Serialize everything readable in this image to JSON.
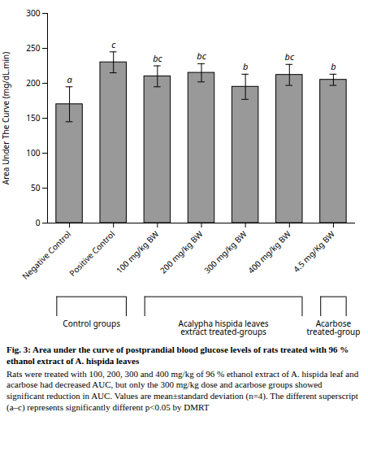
{
  "chart_data": {
    "type": "bar",
    "title": "Fig. 3: Area under the curve of postprandial blood glucose levels of rats treated with 96 % ethanol extract of A. hispida leaves",
    "caption": "Rats were treated with 100, 200, 300 and 400 mg/kg of 96 % ethanol extract of A. hispida leaf and acarbose had decreased AUC, but only the 300 mg/kg dose and acarbose groups showed significant reduction in AUC. Values are mean±standard deviation (n=4). The different superscript (a–c) represents significantly different p<0.05 by DMRT",
    "categories": [
      "Negative Control",
      "Positive Control",
      "100 mg/kg BW",
      "200 mg/kg BW",
      "300 mg/kg BW",
      "400 mg/kg BW",
      "4.5 mg/Kg BW"
    ],
    "values": [
      170,
      230,
      210,
      215,
      195,
      212,
      205
    ],
    "errors": [
      25,
      15,
      15,
      13,
      18,
      15,
      8
    ],
    "letters": [
      "a",
      "c",
      "bc",
      "bc",
      "b",
      "bc",
      "b"
    ],
    "color": "#999999",
    "ylabel": "Area Under The Curve (mg/dL.min)",
    "ylim": [
      0,
      300
    ],
    "yticks": [
      0,
      50,
      100,
      150,
      200,
      250,
      300
    ],
    "groups": [
      {
        "label": "Control groups",
        "from": "Negative Control",
        "to": "Positive Control"
      },
      {
        "label": "Acalypha hispida leaves\nextract treated-groups",
        "from": "100 mg/kg BW",
        "to": "400 mg/kg BW"
      },
      {
        "label": "Acarbose\ntreated-group",
        "from": "4.5 mg/Kg BW",
        "to": "4.5 mg/Kg BW"
      }
    ],
    "grid": false
  }
}
